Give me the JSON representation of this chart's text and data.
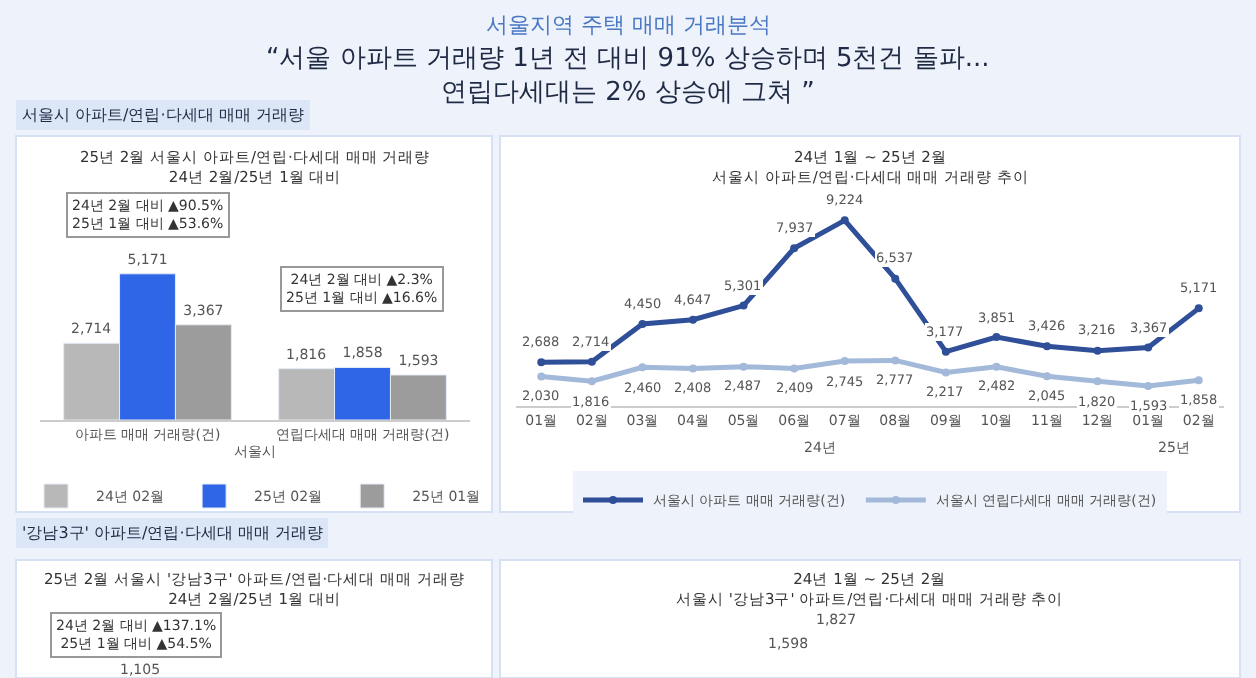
{
  "chart_data": [
    {
      "type": "other",
      "subtitle": "서울지역 주택 매매 거래분석",
      "title": "“서울 아파트 거래량 1년 전 대비 91% 상승하며 5천건 돌파...\n연립다세대는 2% 상승에 그쳐 ”",
      "annotations": [
        "서울시 아파트/연립·다세대 매매 거래량"
      ]
    },
    {
      "type": "bar",
      "title": "25년 2월 서울시 아파트/연립·다세대 매매 거래량\n24년 2월/25년 1월 대비",
      "xlabel": "서울시",
      "categories": [
        "아파트 매매 거래량(건)",
        "연립다세대 매매 거래량(건)"
      ],
      "series": [
        {
          "name": "24년 02월",
          "color": "#b8b8b8",
          "values": [
            2714,
            1816
          ],
          "value_labels": [
            "2,714",
            "1,816"
          ]
        },
        {
          "name": "25년 02월",
          "color": "#2f66e8",
          "values": [
            5171,
            1858
          ],
          "value_labels": [
            "5,171",
            "1,858"
          ]
        },
        {
          "name": "25년 01월",
          "color": "#9c9c9c",
          "values": [
            3367,
            1593
          ],
          "value_labels": [
            "3,367",
            "1,593"
          ]
        }
      ],
      "legend": "bottom",
      "annotations": [
        "24년 2월 대비 ▲90.5%\n25년 1월 대비 ▲53.6%",
        "24년 2월 대비 ▲2.3%\n25년 1월 대비 ▲16.6%"
      ]
    },
    {
      "type": "line",
      "title": "24년 1월 ~ 25년 2월\n서울시 아파트/연립·다세대 매매 거래량 추이",
      "categories": [
        "01월",
        "02월",
        "03월",
        "04월",
        "05월",
        "06월",
        "07월",
        "08월",
        "09월",
        "10월",
        "11월",
        "12월",
        "01월",
        "02월"
      ],
      "series": [
        {
          "name": "서울시 아파트 매매 거래량(건)",
          "color": "#2f4f98",
          "values": [
            2688,
            2714,
            4450,
            4647,
            5301,
            7937,
            9224,
            6537,
            3177,
            3851,
            3426,
            3216,
            3367,
            5171
          ],
          "value_labels": [
            "2,688",
            "2,714",
            "4,450",
            "4,647",
            "5,301",
            "7,937",
            "9,224",
            "6,537",
            "3,177",
            "3,851",
            "3,426",
            "3,216",
            "3,367",
            "5,171"
          ]
        },
        {
          "name": "서울시 연립다세대 매매 거래량(건)",
          "color": "#a3b9d9",
          "values": [
            2030,
            1816,
            2460,
            2408,
            2487,
            2409,
            2745,
            2777,
            2217,
            2482,
            2045,
            1820,
            1593,
            1858
          ],
          "value_labels": [
            "2,030",
            "1,816",
            "2,460",
            "2,408",
            "2,487",
            "2,409",
            "2,745",
            "2,777",
            "2,217",
            "2,482",
            "2,045",
            "1,820",
            "1,593",
            "1,858"
          ]
        }
      ],
      "marker": "circle",
      "line_style": "solid",
      "legend": "bottom",
      "annotations": [
        "24년",
        "25년"
      ]
    },
    {
      "type": "other",
      "title": "25년 2월 서울시 '강남3구' 아파트/연립·다세대 매매 거래량\n24년 2월/25년 1월 대비",
      "annotations": [
        "'강남3구' 아파트/연립·다세대 매매 거래량",
        "24년 2월 대비 ▲137.1%\n25년 1월 대비 ▲54.5%",
        "1,105"
      ]
    },
    {
      "type": "other",
      "title": "24년 1월 ~ 25년 2월\n서울시 '강남3구' 아파트/연립·다세대 매매 거래량 추이",
      "annotations": [
        "1,598",
        "1,827"
      ]
    }
  ]
}
